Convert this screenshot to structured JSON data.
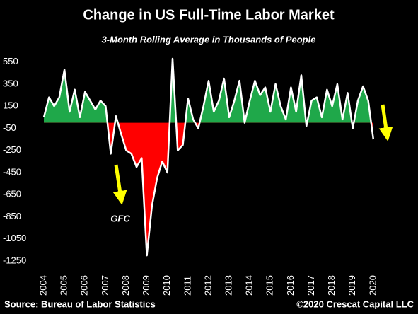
{
  "chart_data": {
    "type": "area",
    "title": "Change in US Full-Time Labor Market",
    "subtitle": "3-Month Rolling Average in Thousands of People",
    "source": "Source: Bureau of Labor Statistics",
    "credit": "©2020 Crescat Capital LLC",
    "annotation": "GFC",
    "positive_color": "#1fa84a",
    "negative_color": "#ff0000",
    "line_color": "#ffffff",
    "x": [
      2004,
      2004.25,
      2004.5,
      2004.75,
      2005,
      2005.25,
      2005.5,
      2005.75,
      2006,
      2006.25,
      2006.5,
      2006.75,
      2007,
      2007.25,
      2007.5,
      2007.75,
      2008,
      2008.25,
      2008.5,
      2008.75,
      2009,
      2009.25,
      2009.5,
      2009.75,
      2010,
      2010.25,
      2010.5,
      2010.75,
      2011,
      2011.25,
      2011.5,
      2011.75,
      2012,
      2012.25,
      2012.5,
      2012.75,
      2013,
      2013.25,
      2013.5,
      2013.75,
      2014,
      2014.25,
      2014.5,
      2014.75,
      2015,
      2015.25,
      2015.5,
      2015.75,
      2016,
      2016.25,
      2016.5,
      2016.75,
      2017,
      2017.25,
      2017.5,
      2017.75,
      2018,
      2018.25,
      2018.5,
      2018.75,
      2019,
      2019.25,
      2019.5,
      2019.75,
      2020
    ],
    "values": [
      50,
      230,
      150,
      230,
      480,
      100,
      300,
      50,
      280,
      200,
      120,
      200,
      150,
      -280,
      60,
      -100,
      -250,
      -280,
      -400,
      -320,
      -1200,
      -750,
      -500,
      -350,
      -450,
      580,
      -250,
      -200,
      220,
      30,
      -50,
      150,
      380,
      100,
      200,
      400,
      50,
      200,
      380,
      0,
      200,
      380,
      250,
      320,
      100,
      350,
      150,
      30,
      320,
      100,
      430,
      -30,
      200,
      230,
      50,
      300,
      150,
      350,
      30,
      270,
      -50,
      200,
      330,
      200,
      -150
    ],
    "xlim": [
      2004,
      2021
    ],
    "xticks": [
      2004,
      2005,
      2006,
      2007,
      2008,
      2009,
      2010,
      2011,
      2012,
      2013,
      2014,
      2015,
      2016,
      2017,
      2018,
      2019,
      2020
    ],
    "ylim": [
      -1250,
      650
    ],
    "yticks": [
      550,
      350,
      150,
      -50,
      -250,
      -450,
      -650,
      -850,
      -1050,
      -1250
    ]
  }
}
